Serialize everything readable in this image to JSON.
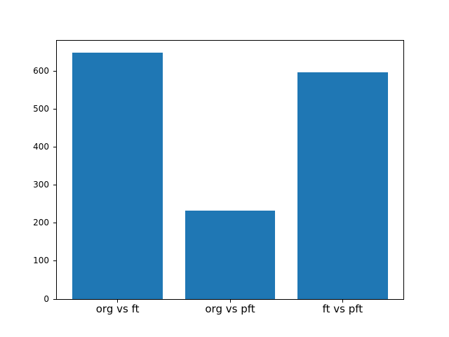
{
  "chart_data": {
    "type": "bar",
    "title": "",
    "xlabel": "",
    "ylabel": "",
    "categories": [
      "org vs ft",
      "org vs pft",
      "ft vs pft"
    ],
    "values": [
      648,
      233,
      597
    ],
    "yticks": [
      0,
      100,
      200,
      300,
      400,
      500,
      600
    ],
    "ylim": [
      0,
      680
    ],
    "xlim": [
      -0.54,
      2.54
    ],
    "bar_width_units": 0.8,
    "bar_color": "#1f77b4",
    "background_color": "#ffffff",
    "axis_color": "#000000",
    "grid": false,
    "legend": null
  }
}
